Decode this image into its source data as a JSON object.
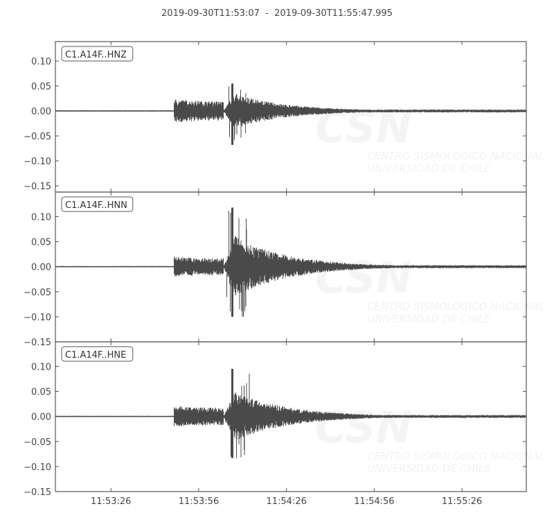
{
  "title": "2019-09-30T11:53:07  -  2019-09-30T11:55:47.995",
  "watermark": {
    "logo_text": "CSN",
    "line1": "CENTRO SISMOLÓGICO NACIONAL",
    "line2": "UNIVERSIDAD DE CHILE"
  },
  "chart_data": {
    "type": "line",
    "xlim": [
      "11:53:07",
      "11:55:47.995"
    ],
    "x_ticks": [
      "11:53:26",
      "11:53:56",
      "11:54:26",
      "11:54:56",
      "11:55:26"
    ],
    "line_color": "#4a4a4a",
    "grid": false,
    "traces": [
      {
        "name": "C1.A14F..HNZ",
        "ylim": [
          -0.1625,
          0.139
        ],
        "y_ticks": [
          "0.10",
          "0.05",
          "0.00",
          "−0.05",
          "−0.10",
          "−0.15"
        ],
        "y_tick_values": [
          0.1,
          0.05,
          0.0,
          -0.05,
          -0.1,
          -0.15
        ],
        "p_arrival": "11:53:47.6",
        "s_arrival": "11:54:05.5",
        "p_amplitude": 0.02,
        "peak_positive": 0.055,
        "peak_negative": -0.068,
        "noise_level": 0.001
      },
      {
        "name": "C1.A14F..HNN",
        "ylim": [
          -0.15,
          0.149
        ],
        "y_ticks": [
          "0.10",
          "0.05",
          "0.00",
          "−0.05",
          "−0.10",
          "−0.15"
        ],
        "y_tick_values": [
          0.1,
          0.05,
          0.0,
          -0.05,
          -0.1,
          -0.15
        ],
        "p_arrival": "11:53:47.6",
        "s_arrival": "11:54:05.5",
        "p_amplitude": 0.017,
        "peak_positive": 0.118,
        "peak_negative": -0.1,
        "noise_level": 0.001
      },
      {
        "name": "C1.A14F..HNE",
        "ylim": [
          -0.15,
          0.149
        ],
        "y_ticks": [
          "0.10",
          "0.05",
          "0.00",
          "−0.05",
          "−0.10",
          "−0.15"
        ],
        "y_tick_values": [
          0.1,
          0.05,
          0.0,
          -0.05,
          -0.1,
          -0.15
        ],
        "p_arrival": "11:53:47.6",
        "s_arrival": "11:54:05.5",
        "p_amplitude": 0.018,
        "peak_positive": 0.095,
        "peak_negative": -0.083,
        "noise_level": 0.001
      }
    ]
  }
}
